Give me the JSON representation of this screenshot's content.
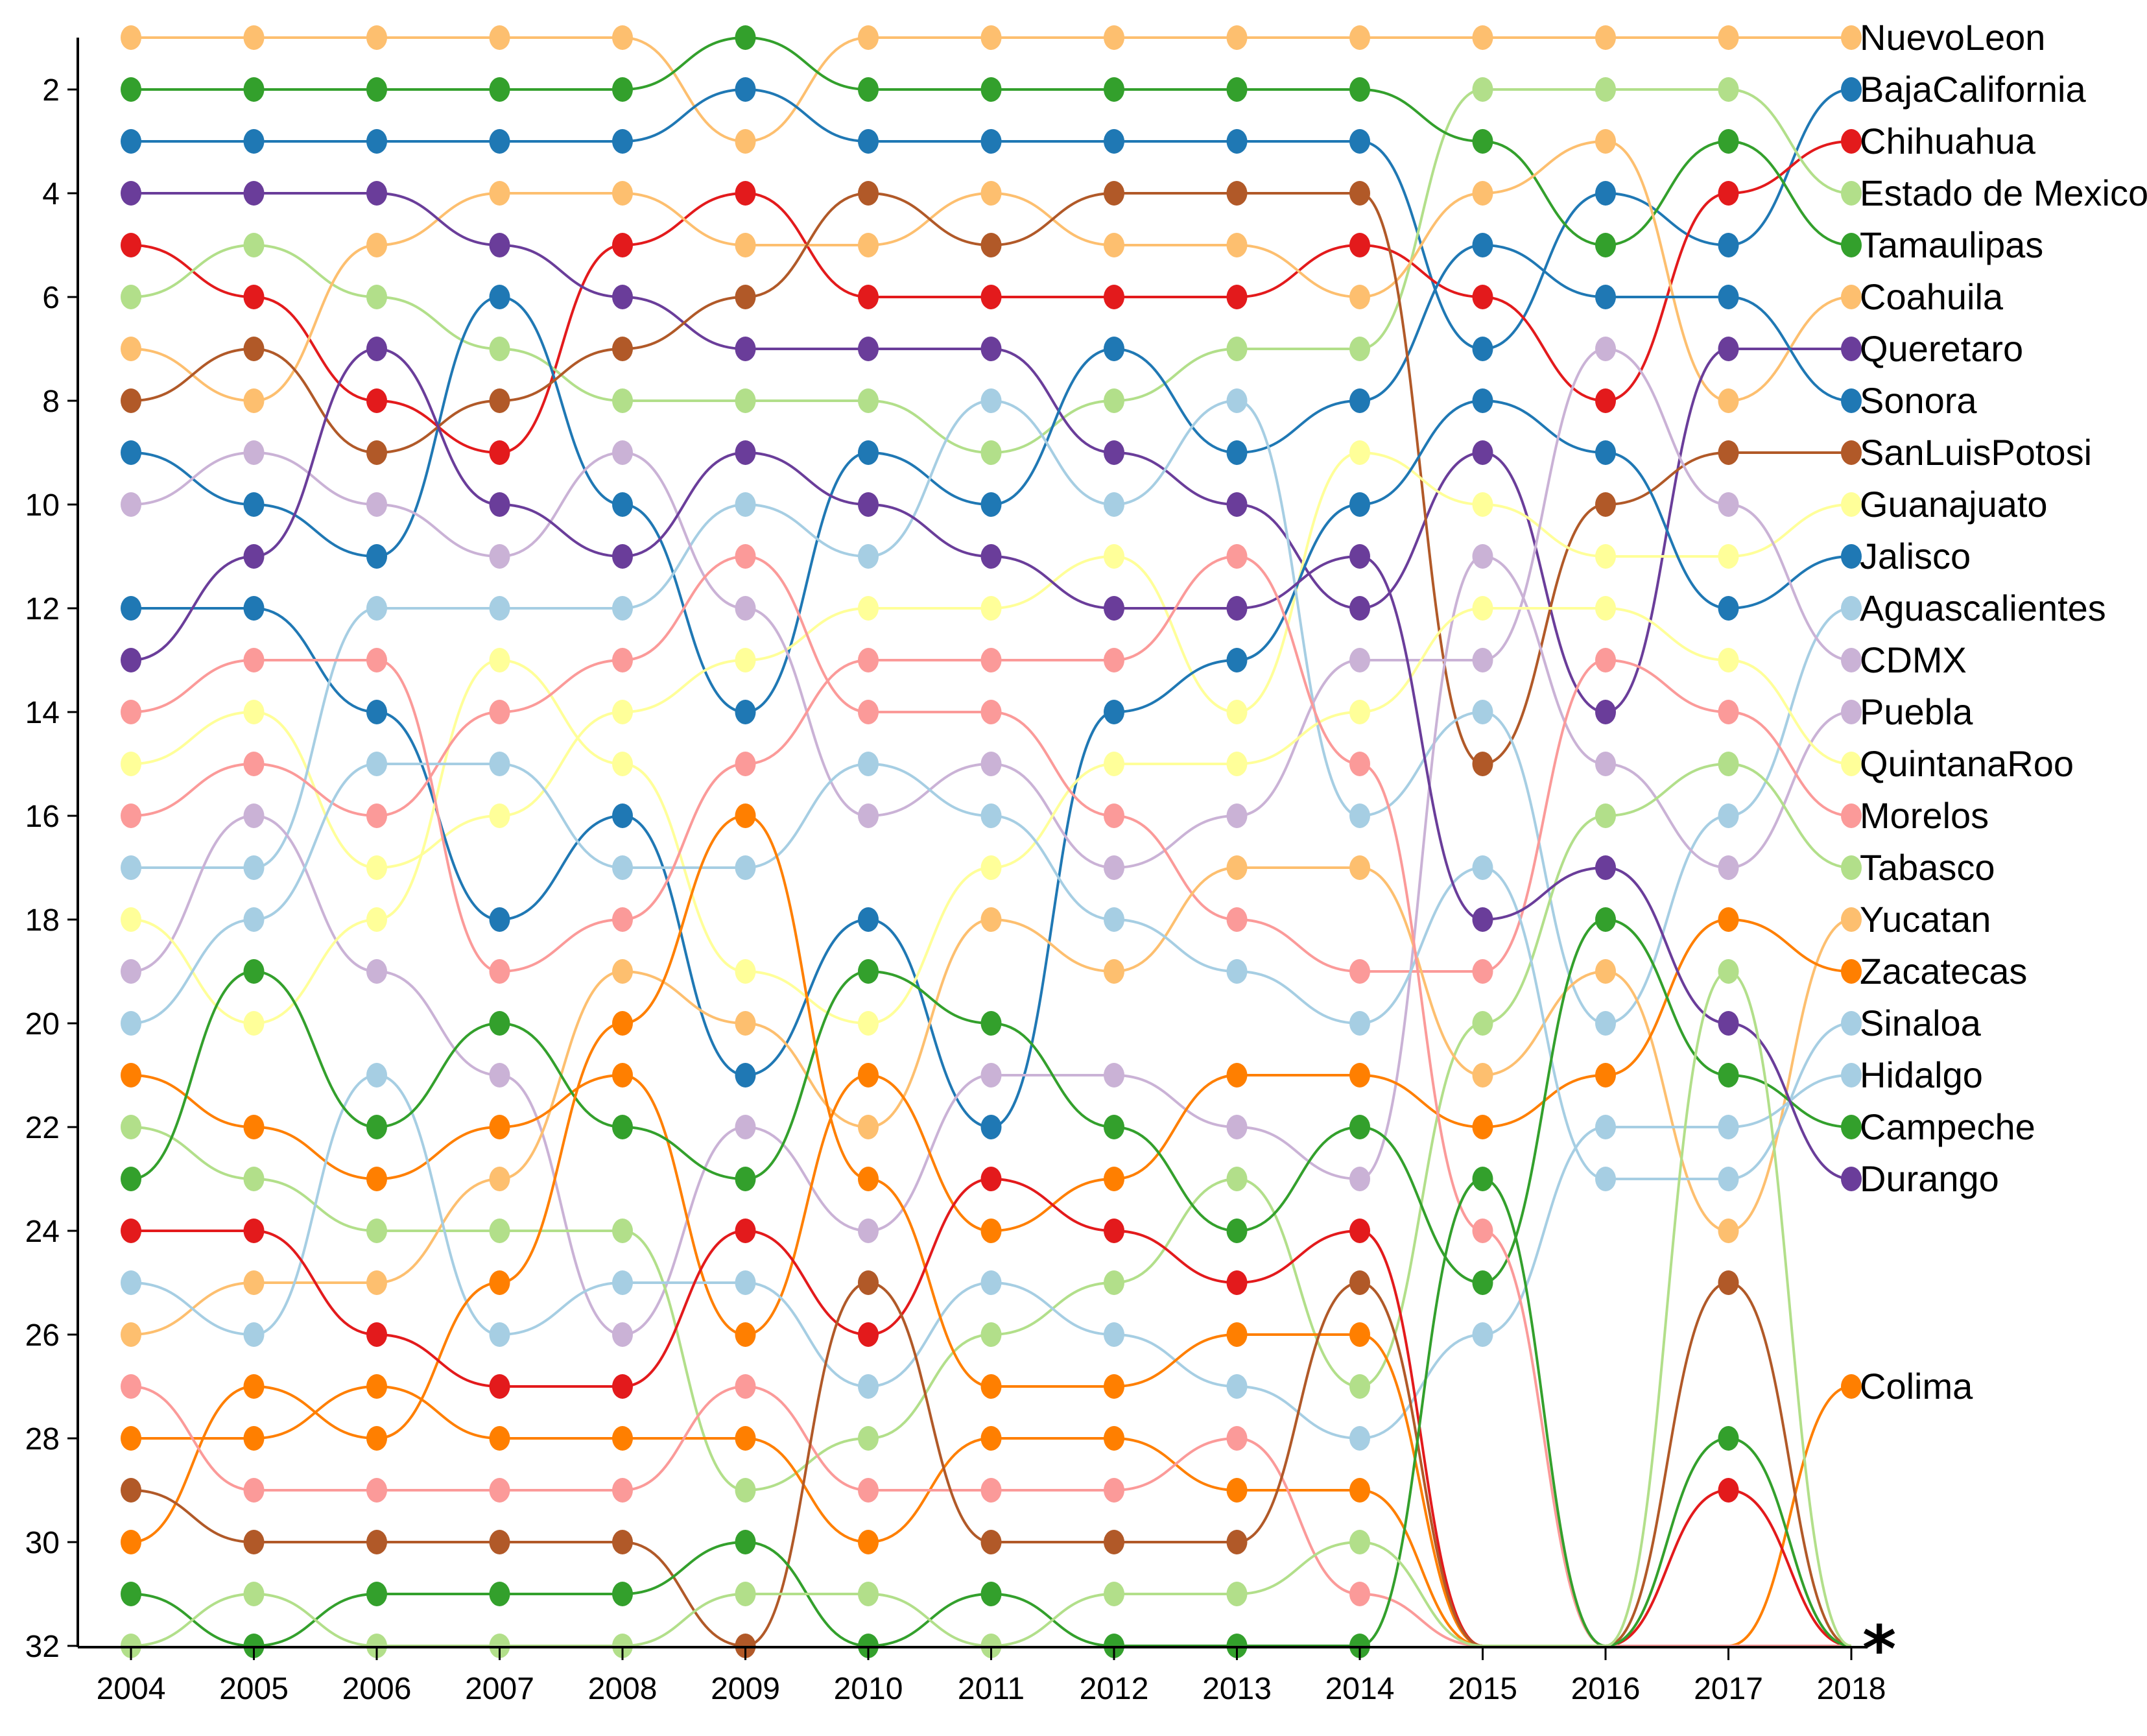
{
  "chart_data": {
    "type": "line",
    "subtype": "bump",
    "x": [
      2004,
      2005,
      2006,
      2007,
      2008,
      2009,
      2010,
      2011,
      2012,
      2013,
      2014,
      2015,
      2016,
      2017,
      2018
    ],
    "y_ticks": [
      2,
      4,
      6,
      8,
      10,
      12,
      14,
      16,
      18,
      20,
      22,
      24,
      26,
      28,
      30,
      32
    ],
    "ylim": [
      32,
      1
    ],
    "y_reversed": true,
    "grid": false,
    "legend": "labels at right end of each series",
    "annotation": "*",
    "series": [
      {
        "name": "NuevoLeon",
        "color": "#fdbf6f",
        "values": [
          1,
          1,
          1,
          1,
          1,
          3,
          1,
          1,
          1,
          1,
          1,
          1,
          1,
          1,
          1
        ]
      },
      {
        "name": "BajaCalifornia",
        "color": "#1f78b4",
        "values": [
          3,
          3,
          3,
          3,
          3,
          2,
          3,
          3,
          3,
          3,
          3,
          7,
          4,
          5,
          2
        ]
      },
      {
        "name": "Chihuahua",
        "color": "#e31a1c",
        "values": [
          5,
          6,
          8,
          9,
          5,
          4,
          6,
          6,
          6,
          6,
          5,
          6,
          8,
          4,
          3
        ]
      },
      {
        "name": "Estado de Mexico",
        "color": "#b2df8a",
        "values": [
          6,
          5,
          6,
          7,
          8,
          8,
          8,
          9,
          8,
          7,
          7,
          2,
          2,
          2,
          4
        ]
      },
      {
        "name": "Tamaulipas",
        "color": "#33a02c",
        "values": [
          2,
          2,
          2,
          2,
          2,
          1,
          2,
          2,
          2,
          2,
          2,
          3,
          5,
          3,
          5
        ]
      },
      {
        "name": "Coahuila",
        "color": "#fdbf6f",
        "values": [
          7,
          8,
          5,
          4,
          4,
          5,
          5,
          4,
          5,
          5,
          6,
          4,
          3,
          8,
          6
        ]
      },
      {
        "name": "Queretaro",
        "color": "#6a3d9a",
        "values": [
          4,
          4,
          4,
          5,
          6,
          7,
          7,
          7,
          9,
          10,
          12,
          9,
          14,
          7,
          7
        ]
      },
      {
        "name": "Sonora",
        "color": "#1f78b4",
        "values": [
          9,
          10,
          11,
          6,
          10,
          14,
          9,
          10,
          7,
          9,
          8,
          5,
          6,
          6,
          8
        ]
      },
      {
        "name": "SanLuisPotosi",
        "color": "#b15928",
        "values": [
          8,
          7,
          9,
          8,
          7,
          6,
          4,
          5,
          4,
          4,
          4,
          15,
          10,
          9,
          9
        ]
      },
      {
        "name": "Guanajuato",
        "color": "#ffff99",
        "values": [
          15,
          14,
          17,
          16,
          14,
          13,
          12,
          12,
          11,
          14,
          9,
          10,
          11,
          11,
          10
        ]
      },
      {
        "name": "Jalisco",
        "color": "#1f78b4",
        "values": [
          12,
          12,
          14,
          18,
          16,
          21,
          18,
          22,
          14,
          13,
          10,
          8,
          9,
          12,
          11
        ]
      },
      {
        "name": "Aguascalientes",
        "color": "#a6cee3",
        "values": [
          17,
          17,
          12,
          12,
          12,
          10,
          11,
          8,
          10,
          8,
          16,
          14,
          20,
          16,
          12
        ]
      },
      {
        "name": "CDMX",
        "color": "#cab2d6",
        "values": [
          10,
          9,
          10,
          11,
          9,
          12,
          16,
          15,
          17,
          16,
          13,
          13,
          7,
          10,
          13
        ]
      },
      {
        "name": "Puebla",
        "color": "#cab2d6",
        "values": [
          19,
          16,
          19,
          21,
          26,
          22,
          24,
          21,
          21,
          22,
          23,
          11,
          15,
          17,
          14
        ]
      },
      {
        "name": "QuintanaRoo",
        "color": "#ffff99",
        "values": [
          18,
          20,
          18,
          13,
          15,
          19,
          20,
          17,
          15,
          15,
          14,
          12,
          12,
          13,
          15
        ]
      },
      {
        "name": "Morelos",
        "color": "#fb9a99",
        "values": [
          16,
          15,
          16,
          14,
          13,
          11,
          14,
          14,
          16,
          18,
          19,
          19,
          13,
          14,
          16
        ]
      },
      {
        "name": "Tabasco",
        "color": "#b2df8a",
        "values": [
          22,
          23,
          24,
          24,
          24,
          29,
          28,
          26,
          25,
          23,
          27,
          20,
          16,
          15,
          17
        ]
      },
      {
        "name": "Yucatan",
        "color": "#fdbf6f",
        "values": [
          26,
          25,
          25,
          23,
          19,
          20,
          22,
          18,
          19,
          17,
          17,
          21,
          19,
          24,
          18
        ]
      },
      {
        "name": "Zacatecas",
        "color": "#ff7f00",
        "values": [
          21,
          22,
          23,
          22,
          21,
          26,
          21,
          24,
          23,
          21,
          21,
          22,
          21,
          18,
          19
        ]
      },
      {
        "name": "Sinaloa",
        "color": "#a6cee3",
        "values": [
          20,
          18,
          15,
          15,
          17,
          17,
          15,
          16,
          18,
          19,
          20,
          17,
          23,
          23,
          20
        ]
      },
      {
        "name": "Hidalgo",
        "color": "#a6cee3",
        "values": [
          25,
          26,
          21,
          26,
          25,
          25,
          27,
          25,
          26,
          27,
          28,
          26,
          22,
          22,
          21
        ]
      },
      {
        "name": "Campeche",
        "color": "#33a02c",
        "values": [
          23,
          19,
          22,
          20,
          22,
          23,
          19,
          20,
          22,
          24,
          22,
          25,
          18,
          21,
          22
        ]
      },
      {
        "name": "Durango",
        "color": "#6a3d9a",
        "values": [
          13,
          11,
          7,
          10,
          11,
          9,
          10,
          11,
          12,
          12,
          11,
          18,
          17,
          20,
          23
        ]
      },
      {
        "name": "Colima",
        "color": "#ff7f00",
        "values": [
          30,
          27,
          28,
          25,
          20,
          16,
          23,
          27,
          27,
          26,
          26,
          32,
          32,
          32,
          27
        ]
      },
      {
        "name": "",
        "color": "#e31a1c",
        "values": [
          24,
          24,
          26,
          27,
          27,
          24,
          26,
          23,
          24,
          25,
          24,
          32,
          32,
          29,
          32
        ]
      },
      {
        "name": "",
        "color": "#ff7f00",
        "values": [
          28,
          28,
          27,
          28,
          28,
          28,
          30,
          28,
          28,
          29,
          29,
          32,
          32,
          32,
          32
        ]
      },
      {
        "name": "",
        "color": "#fb9a99",
        "values": [
          14,
          13,
          13,
          19,
          18,
          15,
          13,
          13,
          13,
          11,
          15,
          24,
          32,
          32,
          32
        ]
      },
      {
        "name": "",
        "color": "#fb9a99",
        "values": [
          27,
          29,
          29,
          29,
          29,
          27,
          29,
          29,
          29,
          28,
          31,
          32,
          32,
          32,
          32
        ]
      },
      {
        "name": "",
        "color": "#b15928",
        "values": [
          29,
          30,
          30,
          30,
          30,
          32,
          25,
          30,
          30,
          30,
          25,
          32,
          32,
          25,
          32
        ]
      },
      {
        "name": "",
        "color": "#33a02c",
        "values": [
          31,
          32,
          31,
          31,
          31,
          30,
          32,
          31,
          32,
          32,
          32,
          23,
          32,
          28,
          32
        ]
      },
      {
        "name": "",
        "color": "#b2df8a",
        "values": [
          32,
          31,
          32,
          32,
          32,
          31,
          31,
          32,
          31,
          31,
          30,
          32,
          32,
          19,
          32
        ]
      }
    ]
  }
}
